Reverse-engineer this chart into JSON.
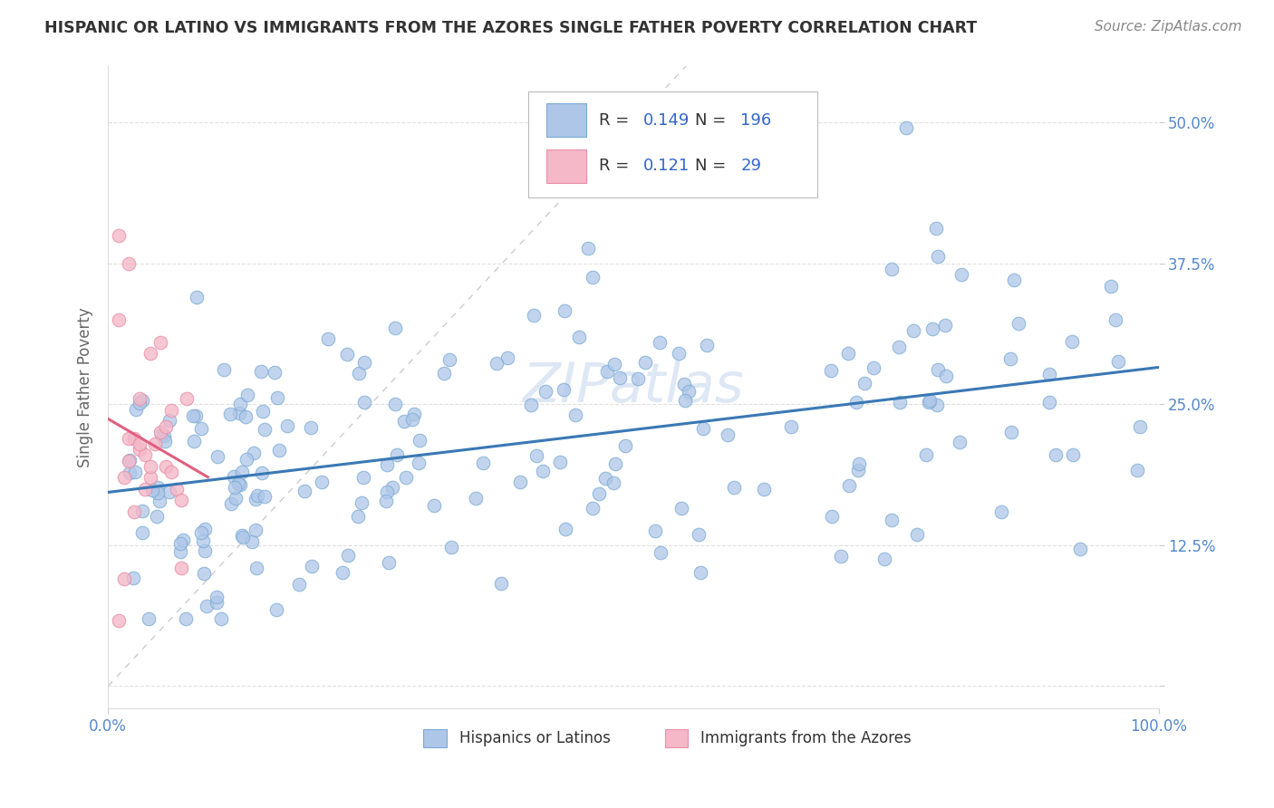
{
  "title": "HISPANIC OR LATINO VS IMMIGRANTS FROM THE AZORES SINGLE FATHER POVERTY CORRELATION CHART",
  "source": "Source: ZipAtlas.com",
  "ylabel": "Single Father Poverty",
  "xlim": [
    0,
    1.0
  ],
  "ylim": [
    -0.02,
    0.55
  ],
  "ytick_vals": [
    0.0,
    0.125,
    0.25,
    0.375,
    0.5
  ],
  "ytick_labels": [
    "",
    "12.5%",
    "25.0%",
    "37.5%",
    "50.0%"
  ],
  "blue_color": "#aec6e8",
  "blue_edge": "#7aaad4",
  "pink_color": "#f4b8c8",
  "pink_edge": "#e890a8",
  "blue_line_color": "#3a78b5",
  "pink_line_color": "#e06080",
  "diagonal_color": "#cccccc",
  "R_blue": 0.149,
  "N_blue": 196,
  "R_pink": 0.121,
  "N_pink": 29,
  "legend_labels": [
    "Hispanics or Latinos",
    "Immigrants from the Azores"
  ],
  "title_color": "#333333",
  "source_color": "#888888",
  "tick_color": "#5588cc",
  "ylabel_color": "#666666",
  "grid_color": "#e0e0e0",
  "watermark_color": "#c8d8ee",
  "seed": 99
}
